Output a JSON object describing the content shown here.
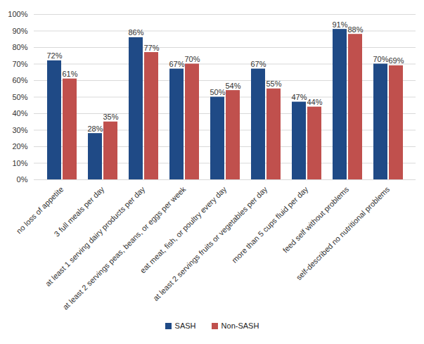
{
  "chart_data": {
    "type": "bar",
    "categories": [
      "no loss of appetite",
      "3 full meals per day",
      "at least 1 serving dairy products per day",
      "at least 2 servings peas, beans, or eggs per week",
      "eat meat, fish, or poultry every day",
      "at least 2 servings fruits or vegetables per day",
      "more than 5 cups fluid per day",
      "feed self without problems",
      "self-described no nutritional problems"
    ],
    "series": [
      {
        "name": "SASH",
        "color": "#1f4a86",
        "values": [
          72,
          28,
          86,
          67,
          50,
          67,
          47,
          91,
          70
        ],
        "value_labels": [
          "72%",
          "28%",
          "86%",
          "67%",
          "50%",
          "67%",
          "47%",
          "91%",
          "70%"
        ]
      },
      {
        "name": "Non-SASH",
        "color": "#c0504d",
        "values": [
          61,
          35,
          77,
          70,
          54,
          55,
          44,
          88,
          69
        ],
        "value_labels": [
          "61%",
          "35%",
          "77%",
          "70%",
          "54%",
          "55%",
          "44%",
          "88%",
          "69%"
        ]
      }
    ],
    "ylim": [
      0,
      100
    ],
    "yticks": [
      {
        "value": 0,
        "label": "0%"
      },
      {
        "value": 10,
        "label": "10%"
      },
      {
        "value": 20,
        "label": "20%"
      },
      {
        "value": 30,
        "label": "30%"
      },
      {
        "value": 40,
        "label": "40%"
      },
      {
        "value": 50,
        "label": "50%"
      },
      {
        "value": 60,
        "label": "60%"
      },
      {
        "value": 70,
        "label": "70%"
      },
      {
        "value": 80,
        "label": "80%"
      },
      {
        "value": 90,
        "label": "90%"
      },
      {
        "value": 100,
        "label": "100%"
      }
    ],
    "grid": true,
    "data_labels": true,
    "legend": "bottom"
  }
}
